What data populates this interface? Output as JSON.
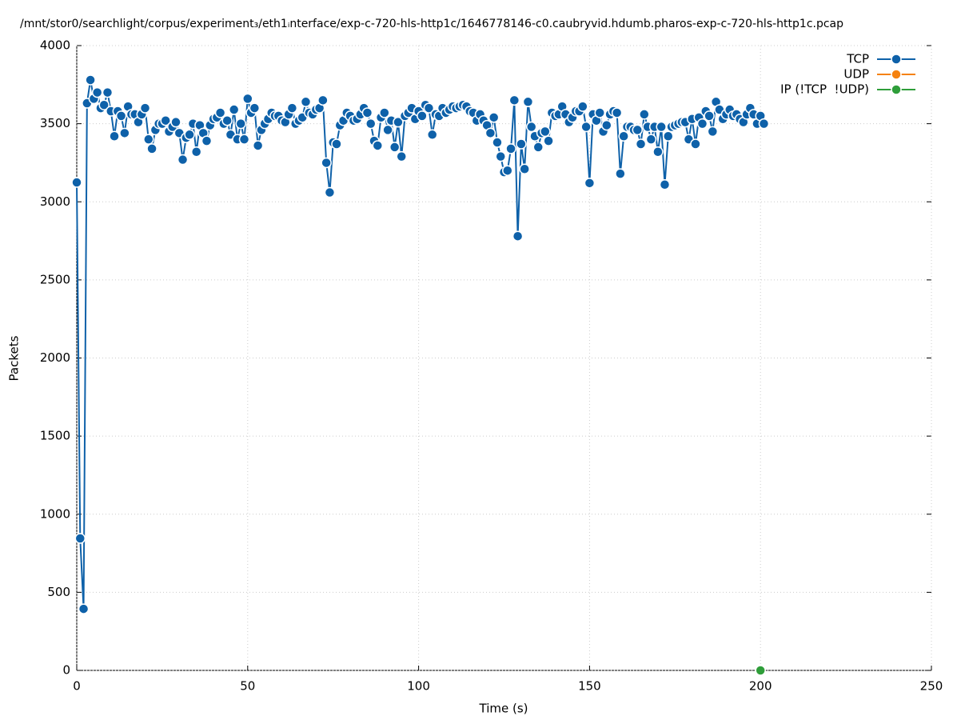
{
  "chart_data": {
    "type": "line",
    "title": "/mnt/stor0/searchlight/corpus/experiment₃/eth1ᵢnterface/exp-c-720-hls-http1c/1646778146-c0.caubryvid.hdumb.pharos-exp-c-720-hls-http1c.pcap",
    "xlabel": "Time (s)",
    "ylabel": "Packets",
    "xlim": [
      0,
      250
    ],
    "xticks": [
      0,
      50,
      100,
      150,
      200,
      250
    ],
    "ylim": [
      0,
      4000
    ],
    "yticks": [
      0,
      500,
      1000,
      1500,
      2000,
      2500,
      3000,
      3500,
      4000
    ],
    "grid": true,
    "legend": "top-right",
    "series": [
      {
        "name": "TCP",
        "color": "#0e61a9",
        "x": [
          0,
          1,
          2,
          3,
          4,
          5,
          6,
          7,
          8,
          9,
          10,
          11,
          12,
          13,
          14,
          15,
          16,
          17,
          18,
          19,
          20,
          21,
          22,
          23,
          24,
          25,
          26,
          27,
          28,
          29,
          30,
          31,
          32,
          33,
          34,
          35,
          36,
          37,
          38,
          39,
          40,
          41,
          42,
          43,
          44,
          45,
          46,
          47,
          48,
          49,
          50,
          51,
          52,
          53,
          54,
          55,
          56,
          57,
          58,
          59,
          60,
          61,
          62,
          63,
          64,
          65,
          66,
          67,
          68,
          69,
          70,
          71,
          72,
          73,
          74,
          75,
          76,
          77,
          78,
          79,
          80,
          81,
          82,
          83,
          84,
          85,
          86,
          87,
          88,
          89,
          90,
          91,
          92,
          93,
          94,
          95,
          96,
          97,
          98,
          99,
          100,
          101,
          102,
          103,
          104,
          105,
          106,
          107,
          108,
          109,
          110,
          111,
          112,
          113,
          114,
          115,
          116,
          117,
          118,
          119,
          120,
          121,
          122,
          123,
          124,
          125,
          126,
          127,
          128,
          129,
          130,
          131,
          132,
          133,
          134,
          135,
          136,
          137,
          138,
          139,
          140,
          141,
          142,
          143,
          144,
          145,
          146,
          147,
          148,
          149,
          150,
          151,
          152,
          153,
          154,
          155,
          156,
          157,
          158,
          159,
          160,
          161,
          162,
          163,
          164,
          165,
          166,
          167,
          168,
          169,
          170,
          171,
          172,
          173,
          174,
          175,
          176,
          177,
          178,
          179,
          180,
          181,
          182,
          183,
          184,
          185,
          186,
          187,
          188,
          189,
          190,
          191,
          192,
          193,
          194,
          195,
          196,
          197,
          198,
          199,
          200,
          201
        ],
        "values": [
          3124,
          845,
          394,
          3631,
          3780,
          3660,
          3700,
          3600,
          3620,
          3700,
          3580,
          3420,
          3580,
          3550,
          3440,
          3610,
          3560,
          3560,
          3510,
          3560,
          3600,
          3400,
          3340,
          3460,
          3500,
          3500,
          3520,
          3450,
          3480,
          3510,
          3440,
          3270,
          3410,
          3430,
          3500,
          3320,
          3490,
          3440,
          3390,
          3490,
          3530,
          3540,
          3570,
          3500,
          3520,
          3430,
          3590,
          3400,
          3500,
          3400,
          3660,
          3570,
          3600,
          3360,
          3460,
          3500,
          3530,
          3570,
          3550,
          3550,
          3520,
          3510,
          3560,
          3600,
          3500,
          3520,
          3540,
          3640,
          3570,
          3560,
          3590,
          3600,
          3650,
          3250,
          3060,
          3380,
          3370,
          3490,
          3520,
          3570,
          3550,
          3520,
          3530,
          3560,
          3600,
          3570,
          3500,
          3390,
          3360,
          3540,
          3570,
          3460,
          3520,
          3350,
          3510,
          3290,
          3550,
          3570,
          3600,
          3530,
          3580,
          3550,
          3620,
          3600,
          3430,
          3560,
          3550,
          3600,
          3570,
          3590,
          3610,
          3600,
          3610,
          3620,
          3610,
          3580,
          3570,
          3520,
          3560,
          3520,
          3490,
          3440,
          3540,
          3380,
          3290,
          3190,
          3200,
          3340,
          3650,
          2780,
          3370,
          3210,
          3640,
          3480,
          3420,
          3350,
          3440,
          3450,
          3390,
          3570,
          3550,
          3560,
          3610,
          3560,
          3510,
          3540,
          3580,
          3580,
          3610,
          3480,
          3120,
          3560,
          3520,
          3570,
          3450,
          3490,
          3560,
          3580,
          3570,
          3180,
          3420,
          3480,
          3480,
          3460,
          3460,
          3370,
          3560,
          3480,
          3400,
          3480,
          3320,
          3480,
          3110,
          3420,
          3480,
          3490,
          3500,
          3510,
          3510,
          3400,
          3530,
          3370,
          3540,
          3500,
          3580,
          3550,
          3450,
          3640,
          3590,
          3530,
          3560,
          3590,
          3550,
          3560,
          3530,
          3510,
          3560,
          3600,
          3560,
          3500,
          3550,
          3500
        ]
      },
      {
        "name": "UDP",
        "color": "#f5820f",
        "x": [],
        "values": []
      },
      {
        "name": "IP (!TCP  !UDP)",
        "color": "#2f9e3a",
        "x": [
          200
        ],
        "values": [
          0
        ]
      }
    ]
  }
}
